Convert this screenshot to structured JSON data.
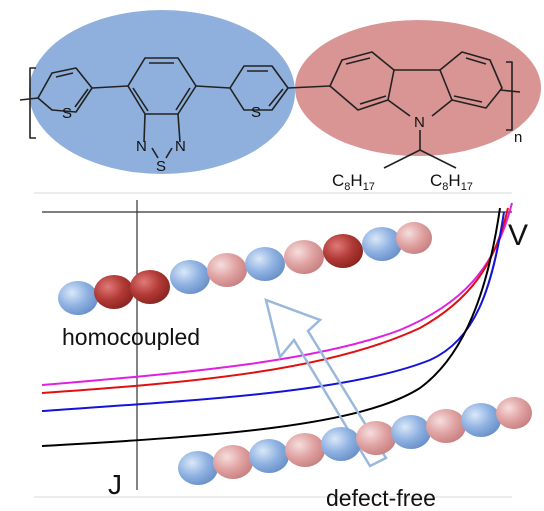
{
  "molecule": {
    "sulfur_label": "S",
    "nitrogen_label": "N",
    "subscript_n": "n",
    "c8h17_left": {
      "main": "C",
      "sub1": "8",
      "h": "H",
      "sub2": "17"
    },
    "c8h17_right": {
      "main": "C",
      "sub1": "8",
      "h": "H",
      "sub2": "17"
    }
  },
  "plot": {
    "x_axis_label": "V",
    "y_axis_label": "J",
    "label_homocoupled": "homocoupled",
    "label_defect_free": "defect-free"
  },
  "colors": {
    "blue_ellipse": "#8fb0dc",
    "red_ellipse": "#d99594",
    "bead_blue": "#8aafe0",
    "bead_pink": "#e0a0a0",
    "bead_darkred": "#b23a36",
    "curve_black": "#000000",
    "curve_blue": "#1414d8",
    "curve_red": "#e01010",
    "curve_magenta": "#e020e0",
    "arrow_outline": "#9ab8dc"
  }
}
